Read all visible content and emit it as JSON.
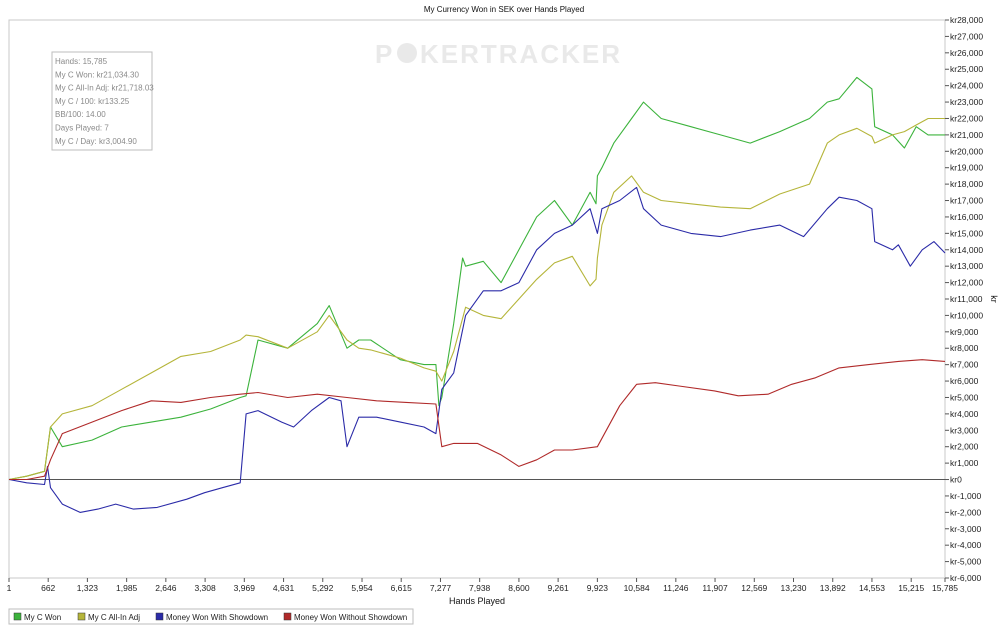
{
  "chart_data": {
    "type": "line",
    "title": "My Currency Won in SEK over Hands Played",
    "xlabel": "Hands Played",
    "ylabel": "kr",
    "xlim": [
      1,
      15785
    ],
    "ylim": [
      -6000,
      28000
    ],
    "x_ticks": [
      1,
      662,
      1323,
      1985,
      2646,
      3308,
      3969,
      4631,
      5292,
      5954,
      6615,
      7277,
      7938,
      8600,
      9261,
      9923,
      10584,
      11246,
      11907,
      12569,
      13230,
      13892,
      14553,
      15215,
      15785
    ],
    "x_tick_labels": [
      "1",
      "662",
      "1,323",
      "1,985",
      "2,646",
      "3,308",
      "3,969",
      "4,631",
      "5,292",
      "5,954",
      "6,615",
      "7,277",
      "7,938",
      "8,600",
      "9,261",
      "9,923",
      "10,584",
      "11,246",
      "11,907",
      "12,569",
      "13,230",
      "13,892",
      "14,553",
      "15,215",
      "15,785"
    ],
    "y_ticks": [
      28000,
      27000,
      26000,
      25000,
      24000,
      23000,
      22000,
      21000,
      20000,
      19000,
      18000,
      17000,
      16000,
      15000,
      14000,
      13000,
      12000,
      11000,
      10000,
      9000,
      8000,
      7000,
      6000,
      5000,
      4000,
      3000,
      2000,
      1000,
      0,
      -1000,
      -2000,
      -3000,
      -4000,
      -5000,
      -6000
    ],
    "y_tick_labels": [
      "kr28,000",
      "kr27,000",
      "kr26,000",
      "kr25,000",
      "kr24,000",
      "kr23,000",
      "kr22,000",
      "kr21,000",
      "kr20,000",
      "kr19,000",
      "kr18,000",
      "kr17,000",
      "kr16,000",
      "kr15,000",
      "kr14,000",
      "kr13,000",
      "kr12,000",
      "kr11,000",
      "kr10,000",
      "kr9,000",
      "kr8,000",
      "kr7,000",
      "kr6,000",
      "kr5,000",
      "kr4,000",
      "kr3,000",
      "kr2,000",
      "kr1,000",
      "kr0",
      "kr-1,000",
      "kr-2,000",
      "kr-3,000",
      "kr-4,000",
      "kr-5,000",
      "kr-6,000"
    ],
    "grid": false,
    "legend_position": "bottom",
    "series": [
      {
        "name": "My C Won",
        "color": "#3cb33c",
        "x": [
          1,
          300,
          600,
          700,
          900,
          1400,
          1900,
          2400,
          2900,
          3400,
          3900,
          4000,
          4200,
          4700,
          5200,
          5400,
          5700,
          5900,
          6100,
          6600,
          7000,
          7200,
          7250,
          7300,
          7500,
          7650,
          7700,
          8000,
          8300,
          8600,
          8900,
          9200,
          9500,
          9800,
          9900,
          9923,
          10000,
          10200,
          10500,
          10700,
          11000,
          11500,
          12000,
          12500,
          13000,
          13500,
          13800,
          14000,
          14300,
          14553,
          14600,
          14900,
          15100,
          15300,
          15500,
          15785
        ],
        "y": [
          0,
          200,
          500,
          3200,
          2000,
          2400,
          3200,
          3500,
          3800,
          4300,
          5000,
          5100,
          8500,
          8000,
          9500,
          10600,
          8000,
          8500,
          8500,
          7300,
          7000,
          7000,
          4500,
          5000,
          9500,
          13500,
          13000,
          13300,
          12000,
          14000,
          16000,
          17000,
          15500,
          17500,
          16800,
          18500,
          19000,
          20500,
          22000,
          23000,
          22000,
          21500,
          21000,
          20500,
          21200,
          22000,
          23000,
          23200,
          24500,
          23800,
          21500,
          21000,
          20200,
          21500,
          21000,
          21000
        ]
      },
      {
        "name": "My C All-In Adj",
        "color": "#b5b53a",
        "x": [
          1,
          300,
          600,
          700,
          900,
          1400,
          1900,
          2400,
          2900,
          3400,
          3900,
          4000,
          4200,
          4700,
          5200,
          5400,
          5700,
          5900,
          6100,
          6600,
          7000,
          7200,
          7300,
          7500,
          7700,
          8000,
          8300,
          8600,
          8900,
          9200,
          9500,
          9800,
          9900,
          9923,
          10000,
          10200,
          10500,
          10700,
          11000,
          11500,
          12000,
          12500,
          13000,
          13500,
          13800,
          14000,
          14300,
          14553,
          14600,
          14900,
          15100,
          15300,
          15500,
          15785
        ],
        "y": [
          0,
          200,
          500,
          3200,
          4000,
          4500,
          5500,
          6500,
          7500,
          7800,
          8500,
          8800,
          8700,
          8000,
          9000,
          10000,
          8500,
          8000,
          7900,
          7400,
          6800,
          6600,
          6000,
          7800,
          10500,
          10000,
          9800,
          11000,
          12200,
          13200,
          13600,
          11800,
          12200,
          13500,
          15500,
          17500,
          18500,
          17500,
          17000,
          16800,
          16600,
          16500,
          17400,
          18000,
          20500,
          21000,
          21400,
          20900,
          20500,
          21000,
          21200,
          21600,
          22000,
          22000
        ]
      },
      {
        "name": "Money Won With Showdown",
        "color": "#2b2ba8",
        "x": [
          1,
          300,
          600,
          650,
          700,
          900,
          1200,
          1500,
          1800,
          2100,
          2500,
          3000,
          3300,
          3600,
          3900,
          4000,
          4200,
          4600,
          4800,
          5100,
          5400,
          5600,
          5700,
          5900,
          6200,
          6600,
          7000,
          7200,
          7300,
          7500,
          7700,
          8000,
          8300,
          8600,
          8900,
          9200,
          9500,
          9800,
          9923,
          10000,
          10300,
          10584,
          10700,
          11000,
          11500,
          12000,
          12500,
          13000,
          13400,
          13800,
          14000,
          14300,
          14553,
          14600,
          14900,
          15000,
          15200,
          15400,
          15600,
          15785
        ],
        "y": [
          0,
          -200,
          -300,
          800,
          -500,
          -1500,
          -2000,
          -1800,
          -1500,
          -1800,
          -1700,
          -1200,
          -800,
          -500,
          -200,
          4000,
          4200,
          3500,
          3200,
          4200,
          5000,
          4800,
          2000,
          3800,
          3800,
          3500,
          3200,
          2800,
          5500,
          6500,
          10000,
          11500,
          11500,
          12000,
          14000,
          15000,
          15500,
          16500,
          15000,
          16500,
          17000,
          17800,
          16500,
          15500,
          15000,
          14800,
          15200,
          15500,
          14800,
          16500,
          17200,
          17000,
          16500,
          14500,
          14000,
          14300,
          13000,
          14000,
          14500,
          13800
        ]
      },
      {
        "name": "Money Won Without Showdown",
        "color": "#b02a2a",
        "x": [
          1,
          300,
          600,
          700,
          900,
          1400,
          1900,
          2400,
          2900,
          3400,
          3900,
          4200,
          4700,
          5200,
          5700,
          6200,
          6700,
          7200,
          7300,
          7500,
          7900,
          8300,
          8600,
          8900,
          9200,
          9500,
          9923,
          10300,
          10584,
          10900,
          11300,
          11900,
          12300,
          12800,
          13200,
          13600,
          14000,
          14500,
          15000,
          15400,
          15785
        ],
        "y": [
          0,
          0,
          200,
          1200,
          2800,
          3500,
          4200,
          4800,
          4700,
          5000,
          5200,
          5300,
          5000,
          5200,
          5000,
          4800,
          4700,
          4600,
          2000,
          2200,
          2200,
          1500,
          800,
          1200,
          1800,
          1800,
          2000,
          4500,
          5800,
          5900,
          5700,
          5400,
          5100,
          5200,
          5800,
          6200,
          6800,
          7000,
          7200,
          7300,
          7200
        ]
      }
    ]
  },
  "stats_box": {
    "lines": [
      "Hands: 15,785",
      "My C Won: kr21,034.30",
      "My C All-In Adj: kr21,718.03",
      "My C / 100: kr133.25",
      "BB/100: 14.00",
      "Days Played: 7",
      "My C / Day: kr3,004.90"
    ]
  },
  "watermark": {
    "text_a": "P",
    "text_b": "KERTRACKER"
  }
}
